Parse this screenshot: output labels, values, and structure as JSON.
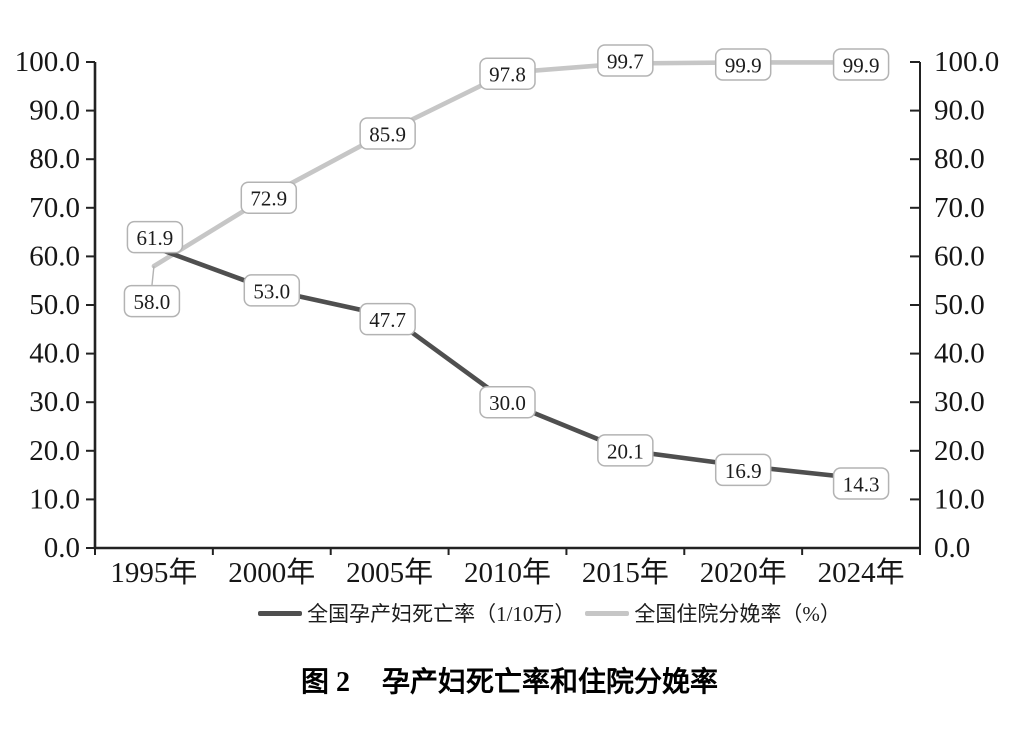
{
  "figure": {
    "caption_label": "图 2",
    "caption_title": "孕产妇死亡率和住院分娩率"
  },
  "chart_data": {
    "type": "line",
    "title": "图 2 孕产妇死亡率和住院分娩率",
    "categories": [
      "1995年",
      "2000年",
      "2005年",
      "2010年",
      "2015年",
      "2020年",
      "2024年"
    ],
    "series": [
      {
        "id": "maternal-mortality-rate",
        "name": "全国孕产妇死亡率（1/10万）",
        "values": [
          61.9,
          53.0,
          47.7,
          30.0,
          20.1,
          16.9,
          14.3
        ],
        "labels": [
          "61.9",
          "53.0",
          "47.7",
          "30.0",
          "20.1",
          "16.9",
          "14.3"
        ],
        "color": "#4f4f4f",
        "label_offsets": [
          [
            1,
            -10
          ],
          [
            0,
            0
          ],
          [
            -2,
            3
          ],
          [
            0,
            0
          ],
          [
            0,
            0
          ],
          [
            0,
            4
          ],
          [
            0,
            5
          ]
        ],
        "label_leader": [
          false,
          false,
          false,
          false,
          false,
          false,
          false
        ]
      },
      {
        "id": "hospital-delivery-rate",
        "name": "全国住院分娩率（%）",
        "values": [
          58.0,
          72.9,
          85.9,
          97.8,
          99.7,
          99.9,
          99.9
        ],
        "labels": [
          "58.0",
          "72.9",
          "85.9",
          "97.8",
          "99.7",
          "99.9",
          "99.9"
        ],
        "color": "#c6c6c6",
        "label_offsets": [
          [
            -2,
            35
          ],
          [
            -3,
            4
          ],
          [
            -2,
            3
          ],
          [
            0,
            1
          ],
          [
            0,
            -3
          ],
          [
            0,
            2
          ],
          [
            0,
            2
          ]
        ],
        "label_leader": [
          true,
          false,
          false,
          false,
          false,
          false,
          false
        ]
      }
    ],
    "ylim": [
      0,
      100
    ],
    "y_step": 10,
    "y_tick_labels": [
      "0.0",
      "10.0",
      "20.0",
      "30.0",
      "40.0",
      "50.0",
      "60.0",
      "70.0",
      "80.0",
      "90.0",
      "100.0"
    ],
    "y_axis_left": true,
    "y_axis_right": true,
    "xlabel": "",
    "ylabel": "",
    "grid": false,
    "legend_position": "bottom",
    "axis_color": "#222222",
    "label_box_fill": "#ffffff",
    "label_box_border": "#b3b3b3"
  }
}
